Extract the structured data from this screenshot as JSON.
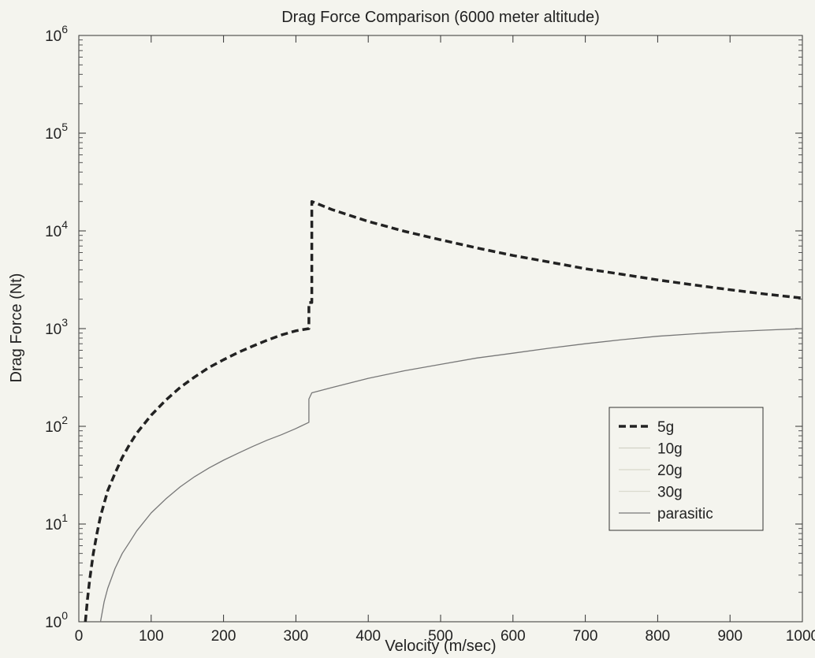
{
  "chart_data": {
    "type": "line",
    "title": "Drag Force Comparison (6000 meter altitude)",
    "xlabel": "Velocity (m/sec)",
    "ylabel": "Drag Force (Nt)",
    "xlim": [
      0,
      1000
    ],
    "ylim": [
      1,
      1000000
    ],
    "yscale": "log",
    "grid": false,
    "legend_position": "bottom-right",
    "x_ticks": [
      0,
      100,
      200,
      300,
      400,
      500,
      600,
      700,
      800,
      900,
      1000
    ],
    "y_tick_exponents": [
      "0",
      "1",
      "2",
      "3",
      "4",
      "5",
      "6"
    ],
    "y_tick_base": "10",
    "series": [
      {
        "name": "5g",
        "style": "dashed",
        "color": "#222222",
        "x": [
          9,
          12,
          15,
          20,
          25,
          30,
          40,
          50,
          60,
          70,
          80,
          100,
          120,
          140,
          160,
          180,
          200,
          220,
          240,
          260,
          280,
          300,
          318,
          318,
          322,
          322,
          350,
          400,
          450,
          500,
          550,
          600,
          650,
          700,
          750,
          800,
          850,
          900,
          950,
          1000
        ],
        "y": [
          1,
          1.7,
          2.7,
          5,
          8,
          12,
          22,
          33,
          48,
          65,
          85,
          130,
          185,
          250,
          320,
          400,
          480,
          570,
          660,
          760,
          860,
          950,
          1000,
          1850,
          1850,
          20000,
          16500,
          12500,
          9900,
          8100,
          6700,
          5600,
          4800,
          4100,
          3600,
          3150,
          2800,
          2500,
          2250,
          2050
        ]
      },
      {
        "name": "10g",
        "style": "solid",
        "color": "#d2d2c6",
        "x": [],
        "y": []
      },
      {
        "name": "20g",
        "style": "solid",
        "color": "#d6d6ca",
        "x": [],
        "y": []
      },
      {
        "name": "30g",
        "style": "solid",
        "color": "#dadace",
        "x": [],
        "y": []
      },
      {
        "name": "parasitic",
        "style": "solid",
        "color": "#777777",
        "x": [
          30,
          35,
          40,
          50,
          60,
          70,
          80,
          100,
          120,
          140,
          160,
          180,
          200,
          220,
          240,
          260,
          280,
          300,
          318,
          318,
          322,
          350,
          400,
          450,
          500,
          550,
          600,
          650,
          700,
          750,
          800,
          850,
          900,
          950,
          1000
        ],
        "y": [
          1,
          1.6,
          2.2,
          3.5,
          5,
          6.5,
          8.5,
          13,
          18,
          24,
          30.5,
          37.5,
          45,
          53,
          62,
          72,
          82,
          95,
          110,
          190,
          220,
          250,
          310,
          370,
          430,
          500,
          560,
          630,
          700,
          770,
          835,
          885,
          930,
          965,
          1000
        ]
      }
    ]
  }
}
